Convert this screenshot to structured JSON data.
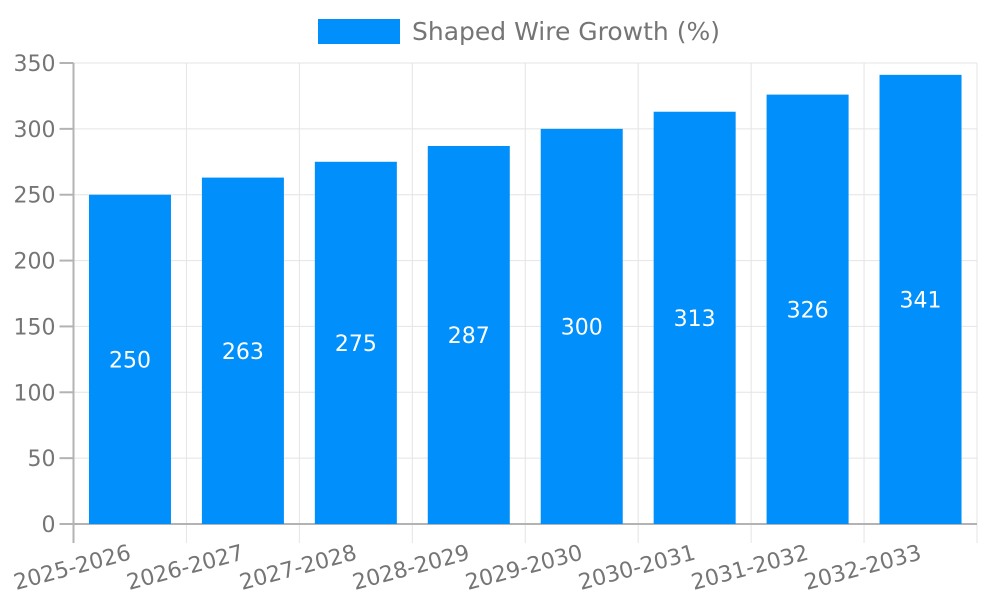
{
  "legend": {
    "label": "Shaped Wire Growth (%)"
  },
  "chart_data": {
    "type": "bar",
    "title": "",
    "xlabel": "",
    "ylabel": "",
    "categories": [
      "2025-2026",
      "2026-2027",
      "2027-2028",
      "2028-2029",
      "2029-2030",
      "2030-2031",
      "2031-2032",
      "2032-2033"
    ],
    "series": [
      {
        "name": "Shaped Wire Growth (%)",
        "values": [
          250,
          263,
          275,
          287,
          300,
          313,
          326,
          341
        ]
      }
    ],
    "value_labels_visible": true,
    "ylim": [
      0,
      350
    ],
    "yticks": [
      0,
      50,
      100,
      150,
      200,
      250,
      300,
      350
    ],
    "grid": true,
    "legend_position": "top",
    "x_label_rotation_deg": -15,
    "colors": {
      "bar": "#008FFB",
      "grid": "#e4e4e4",
      "axis": "#b3b3b3",
      "tick_label": "#757575",
      "value_label": "#ffffff",
      "legend_label": "#757575"
    }
  }
}
